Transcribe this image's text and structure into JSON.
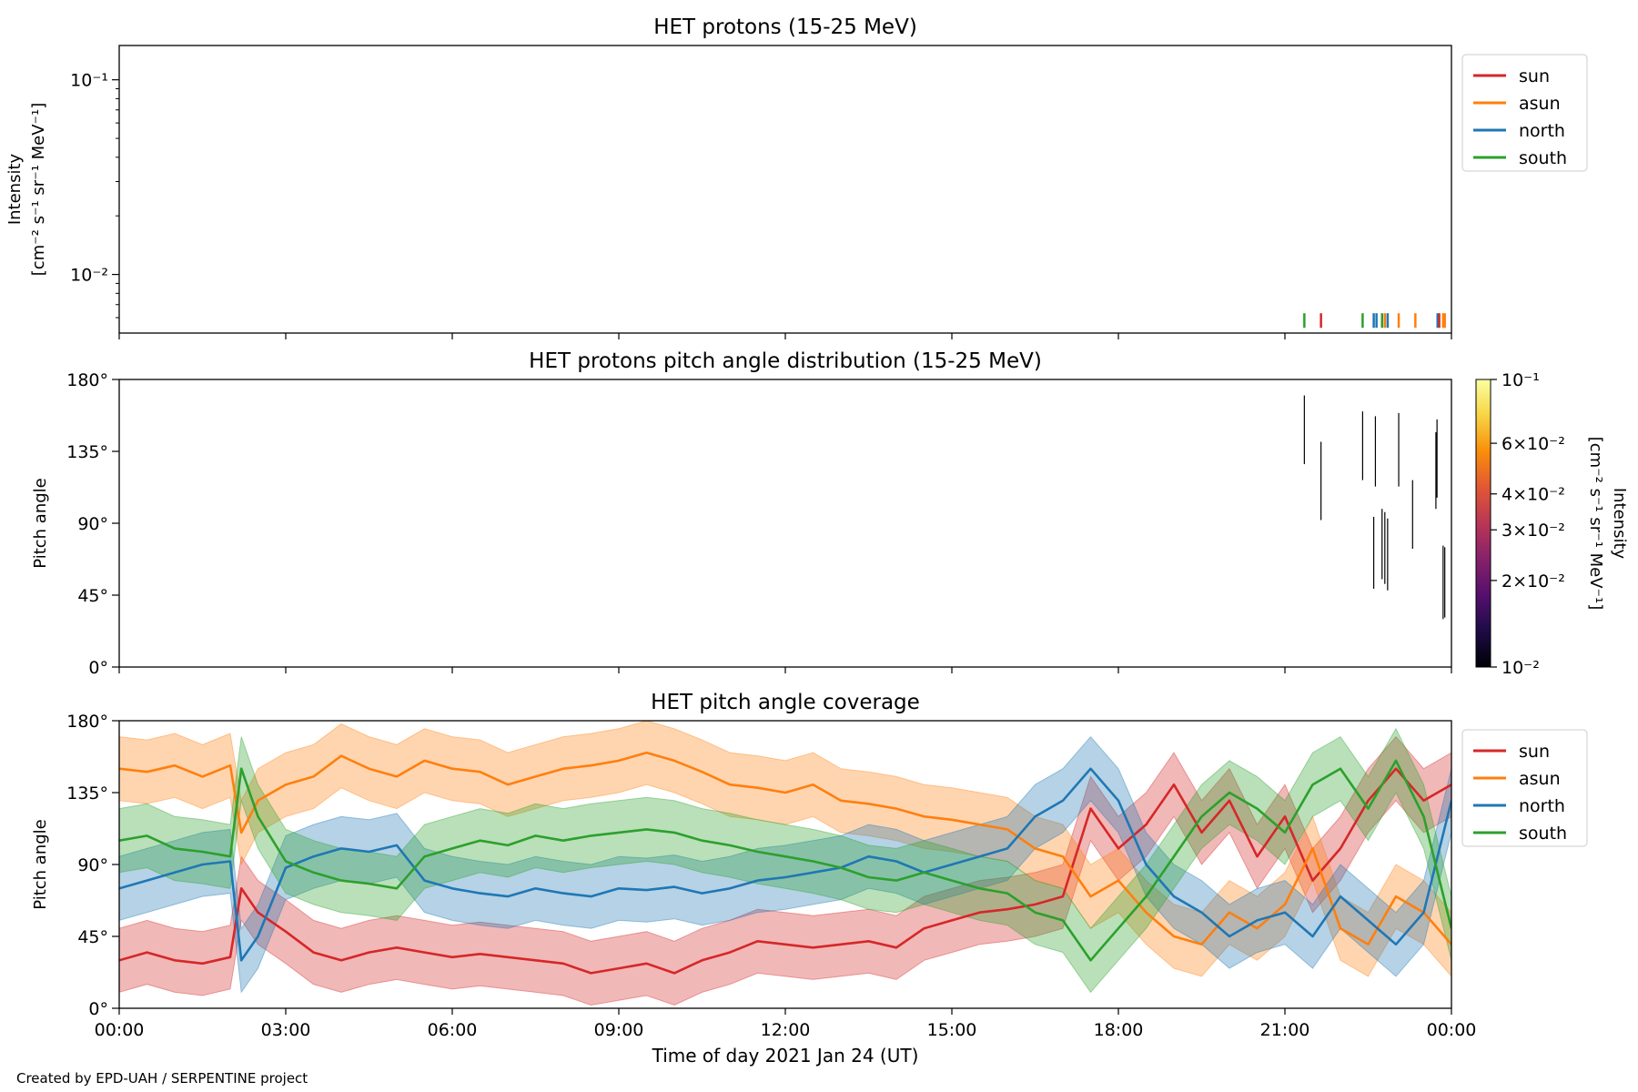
{
  "footer": "Created by EPD-UAH / SERPENTINE project",
  "colors": {
    "sun": "#d62728",
    "asun": "#ff7f0e",
    "north": "#1f77b4",
    "south": "#2ca02c"
  },
  "chart_data": [
    {
      "type": "line",
      "title": "HET protons (15-25 MeV)",
      "ylabel_line1": "Intensity",
      "ylabel_line2": "[cm⁻² s⁻¹ sr⁻¹ MeV⁻¹]",
      "yscale": "log",
      "ylim": [
        0.005,
        0.15
      ],
      "yticks": [
        {
          "value": 0.1,
          "label": "10⁻¹"
        },
        {
          "value": 0.01,
          "label": "10⁻²"
        }
      ],
      "xlim_hours": [
        0,
        24
      ],
      "legend": {
        "position": "outside-right",
        "entries": [
          "sun",
          "asun",
          "north",
          "south"
        ]
      },
      "events": [
        {
          "t": 21.35,
          "series": "south",
          "value": 0.0058
        },
        {
          "t": 21.65,
          "series": "sun",
          "value": 0.0058
        },
        {
          "t": 22.4,
          "series": "south",
          "value": 0.0058
        },
        {
          "t": 22.6,
          "series": "north",
          "value": 0.0058
        },
        {
          "t": 22.65,
          "series": "north",
          "value": 0.0058
        },
        {
          "t": 22.75,
          "series": "south",
          "value": 0.0058
        },
        {
          "t": 22.8,
          "series": "asun",
          "value": 0.0058
        },
        {
          "t": 22.85,
          "series": "north",
          "value": 0.0058
        },
        {
          "t": 23.05,
          "series": "asun",
          "value": 0.0058
        },
        {
          "t": 23.35,
          "series": "asun",
          "value": 0.0058
        },
        {
          "t": 23.75,
          "series": "north",
          "value": 0.0058
        },
        {
          "t": 23.78,
          "series": "sun",
          "value": 0.0058
        },
        {
          "t": 23.85,
          "series": "asun",
          "value": 0.0058
        },
        {
          "t": 23.88,
          "series": "asun",
          "value": 0.0058
        }
      ]
    },
    {
      "type": "heatmap",
      "title": "HET protons pitch angle distribution (15-25 MeV)",
      "ylabel": "Pitch angle",
      "ylim": [
        0,
        180
      ],
      "yticks": [
        {
          "value": 180,
          "label": "180°"
        },
        {
          "value": 135,
          "label": "135°"
        },
        {
          "value": 90,
          "label": "90°"
        },
        {
          "value": 45,
          "label": "45°"
        },
        {
          "value": 0,
          "label": "0°"
        }
      ],
      "xlim_hours": [
        0,
        24
      ],
      "colorbar": {
        "label_line1": "Intensity",
        "label_line2": "[cm⁻² s⁻¹ sr⁻¹ MeV⁻¹]",
        "scale": "log",
        "range": [
          0.01,
          0.1
        ],
        "ticks": [
          {
            "value": 0.1,
            "label": "10⁻¹"
          },
          {
            "value": 0.06,
            "label": "6×10⁻²"
          },
          {
            "value": 0.04,
            "label": "4×10⁻²"
          },
          {
            "value": 0.03,
            "label": "3×10⁻²"
          },
          {
            "value": 0.02,
            "label": "2×10⁻²"
          },
          {
            "value": 0.01,
            "label": "10⁻²"
          }
        ]
      },
      "segments": [
        {
          "t": 21.35,
          "pa_low": 127,
          "pa_high": 170
        },
        {
          "t": 21.65,
          "pa_low": 92,
          "pa_high": 141
        },
        {
          "t": 22.4,
          "pa_low": 117,
          "pa_high": 160
        },
        {
          "t": 22.6,
          "pa_low": 49,
          "pa_high": 94
        },
        {
          "t": 22.63,
          "pa_low": 113,
          "pa_high": 157
        },
        {
          "t": 22.75,
          "pa_low": 55,
          "pa_high": 99
        },
        {
          "t": 22.8,
          "pa_low": 52,
          "pa_high": 97
        },
        {
          "t": 22.85,
          "pa_low": 48,
          "pa_high": 93
        },
        {
          "t": 23.05,
          "pa_low": 113,
          "pa_high": 159
        },
        {
          "t": 23.3,
          "pa_low": 74,
          "pa_high": 117
        },
        {
          "t": 23.72,
          "pa_low": 99,
          "pa_high": 147
        },
        {
          "t": 23.74,
          "pa_low": 106,
          "pa_high": 155
        },
        {
          "t": 23.85,
          "pa_low": 30,
          "pa_high": 76
        },
        {
          "t": 23.88,
          "pa_low": 31,
          "pa_high": 75
        }
      ]
    },
    {
      "type": "area",
      "title": "HET pitch angle coverage",
      "ylabel": "Pitch angle",
      "xlabel": "Time of day 2021 Jan 24 (UT)",
      "ylim": [
        0,
        180
      ],
      "yticks": [
        {
          "value": 180,
          "label": "180°"
        },
        {
          "value": 135,
          "label": "135°"
        },
        {
          "value": 90,
          "label": "90°"
        },
        {
          "value": 45,
          "label": "45°"
        },
        {
          "value": 0,
          "label": "0°"
        }
      ],
      "xlim_hours": [
        0,
        24
      ],
      "xticks": [
        {
          "value": 0,
          "label": "00:00"
        },
        {
          "value": 3,
          "label": "03:00"
        },
        {
          "value": 6,
          "label": "06:00"
        },
        {
          "value": 9,
          "label": "09:00"
        },
        {
          "value": 12,
          "label": "12:00"
        },
        {
          "value": 15,
          "label": "15:00"
        },
        {
          "value": 18,
          "label": "18:00"
        },
        {
          "value": 21,
          "label": "21:00"
        },
        {
          "value": 24,
          "label": "00:00"
        }
      ],
      "legend": {
        "position": "outside-right",
        "entries": [
          "sun",
          "asun",
          "north",
          "south"
        ]
      },
      "band_halfwidth_deg": 20,
      "series": [
        {
          "name": "sun",
          "t": [
            0,
            0.5,
            1,
            1.5,
            2,
            2.2,
            2.5,
            3,
            3.5,
            4,
            4.5,
            5,
            5.5,
            6,
            6.5,
            7,
            7.5,
            8,
            8.5,
            9,
            9.5,
            10,
            10.5,
            11,
            11.5,
            12,
            12.5,
            13,
            13.5,
            14,
            14.5,
            15,
            15.5,
            16,
            16.5,
            17,
            17.5,
            18,
            18.5,
            19,
            19.5,
            20,
            20.5,
            21,
            21.5,
            22,
            22.5,
            23,
            23.5,
            24
          ],
          "pa": [
            30,
            35,
            30,
            28,
            32,
            75,
            60,
            48,
            35,
            30,
            35,
            38,
            35,
            32,
            34,
            32,
            30,
            28,
            22,
            25,
            28,
            22,
            30,
            35,
            42,
            40,
            38,
            40,
            42,
            38,
            50,
            55,
            60,
            62,
            65,
            70,
            125,
            100,
            115,
            140,
            110,
            130,
            95,
            120,
            80,
            100,
            130,
            150,
            130,
            140
          ]
        },
        {
          "name": "asun",
          "t": [
            0,
            0.5,
            1,
            1.5,
            2,
            2.2,
            2.5,
            3,
            3.5,
            4,
            4.5,
            5,
            5.5,
            6,
            6.5,
            7,
            7.5,
            8,
            8.5,
            9,
            9.5,
            10,
            10.5,
            11,
            11.5,
            12,
            12.5,
            13,
            13.5,
            14,
            14.5,
            15,
            15.5,
            16,
            16.5,
            17,
            17.5,
            18,
            18.5,
            19,
            19.5,
            20,
            20.5,
            21,
            21.5,
            22,
            22.5,
            23,
            23.5,
            24
          ],
          "pa": [
            150,
            148,
            152,
            145,
            152,
            110,
            130,
            140,
            145,
            158,
            150,
            145,
            155,
            150,
            148,
            140,
            145,
            150,
            152,
            155,
            160,
            155,
            148,
            140,
            138,
            135,
            140,
            130,
            128,
            125,
            120,
            118,
            115,
            112,
            100,
            95,
            70,
            80,
            60,
            45,
            40,
            60,
            50,
            65,
            100,
            50,
            40,
            70,
            60,
            40
          ]
        },
        {
          "name": "north",
          "t": [
            0,
            0.5,
            1,
            1.5,
            2,
            2.2,
            2.5,
            3,
            3.5,
            4,
            4.5,
            5,
            5.5,
            6,
            6.5,
            7,
            7.5,
            8,
            8.5,
            9,
            9.5,
            10,
            10.5,
            11,
            11.5,
            12,
            12.5,
            13,
            13.5,
            14,
            14.5,
            15,
            15.5,
            16,
            16.5,
            17,
            17.5,
            18,
            18.5,
            19,
            19.5,
            20,
            20.5,
            21,
            21.5,
            22,
            22.5,
            23,
            23.5,
            24
          ],
          "pa": [
            75,
            80,
            85,
            90,
            92,
            30,
            45,
            88,
            95,
            100,
            98,
            102,
            80,
            75,
            72,
            70,
            75,
            72,
            70,
            75,
            74,
            76,
            72,
            75,
            80,
            82,
            85,
            88,
            95,
            92,
            85,
            90,
            95,
            100,
            120,
            130,
            150,
            130,
            90,
            70,
            60,
            45,
            55,
            60,
            45,
            70,
            55,
            40,
            60,
            130
          ]
        },
        {
          "name": "south",
          "t": [
            0,
            0.5,
            1,
            1.5,
            2,
            2.2,
            2.5,
            3,
            3.5,
            4,
            4.5,
            5,
            5.5,
            6,
            6.5,
            7,
            7.5,
            8,
            8.5,
            9,
            9.5,
            10,
            10.5,
            11,
            11.5,
            12,
            12.5,
            13,
            13.5,
            14,
            14.5,
            15,
            15.5,
            16,
            16.5,
            17,
            17.5,
            18,
            18.5,
            19,
            19.5,
            20,
            20.5,
            21,
            21.5,
            22,
            22.5,
            23,
            23.5,
            24
          ],
          "pa": [
            105,
            108,
            100,
            98,
            95,
            150,
            120,
            92,
            85,
            80,
            78,
            75,
            95,
            100,
            105,
            102,
            108,
            105,
            108,
            110,
            112,
            110,
            105,
            102,
            98,
            95,
            92,
            88,
            82,
            80,
            85,
            80,
            75,
            72,
            60,
            55,
            30,
            50,
            70,
            95,
            120,
            135,
            125,
            110,
            140,
            150,
            125,
            155,
            120,
            50
          ]
        }
      ]
    }
  ]
}
